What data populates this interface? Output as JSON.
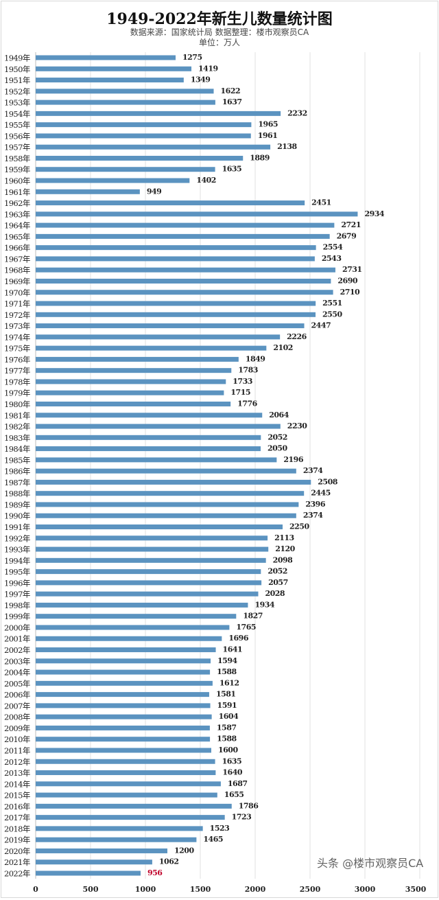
{
  "chart_data": {
    "type": "bar",
    "orientation": "horizontal",
    "title": "1949-2022年新生儿数量统计图",
    "subtitle": "数据来源：国家统计局  数据整理：楼市观察员CA",
    "unit": "单位：万人",
    "categories": [
      "1949年",
      "1950年",
      "1951年",
      "1952年",
      "1953年",
      "1954年",
      "1955年",
      "1956年",
      "1957年",
      "1958年",
      "1959年",
      "1960年",
      "1961年",
      "1962年",
      "1963年",
      "1964年",
      "1965年",
      "1966年",
      "1967年",
      "1968年",
      "1969年",
      "1970年",
      "1971年",
      "1972年",
      "1973年",
      "1974年",
      "1975年",
      "1976年",
      "1977年",
      "1978年",
      "1979年",
      "1980年",
      "1981年",
      "1982年",
      "1983年",
      "1984年",
      "1985年",
      "1986年",
      "1987年",
      "1988年",
      "1989年",
      "1990年",
      "1991年",
      "1992年",
      "1993年",
      "1994年",
      "1995年",
      "1996年",
      "1997年",
      "1998年",
      "1999年",
      "2000年",
      "2001年",
      "2002年",
      "2003年",
      "2004年",
      "2005年",
      "2006年",
      "2007年",
      "2008年",
      "2009年",
      "2010年",
      "2011年",
      "2012年",
      "2013年",
      "2014年",
      "2015年",
      "2016年",
      "2017年",
      "2018年",
      "2019年",
      "2020年",
      "2021年",
      "2022年"
    ],
    "values": [
      1275,
      1419,
      1349,
      1622,
      1637,
      2232,
      1965,
      1961,
      2138,
      1889,
      1635,
      1402,
      949,
      2451,
      2934,
      2721,
      2679,
      2554,
      2543,
      2731,
      2690,
      2710,
      2551,
      2550,
      2447,
      2226,
      2102,
      1849,
      1783,
      1733,
      1715,
      1776,
      2064,
      2230,
      2052,
      2050,
      2196,
      2374,
      2508,
      2445,
      2396,
      2374,
      2250,
      2113,
      2120,
      2098,
      2052,
      2057,
      2028,
      1934,
      1827,
      1765,
      1696,
      1641,
      1594,
      1588,
      1612,
      1581,
      1591,
      1604,
      1587,
      1588,
      1600,
      1635,
      1640,
      1687,
      1655,
      1786,
      1723,
      1523,
      1465,
      1200,
      1062,
      956
    ],
    "xlim": [
      0,
      3500
    ],
    "xticks": [
      "0",
      "500",
      "1000",
      "1500",
      "2000",
      "2500",
      "3000",
      "3500"
    ],
    "grid": "vertical",
    "bar_color": "#5b93c0",
    "highlight_label_color": "#c0002a",
    "highlight_category": "2022年"
  },
  "watermark": "头条 @楼市观察员CA"
}
